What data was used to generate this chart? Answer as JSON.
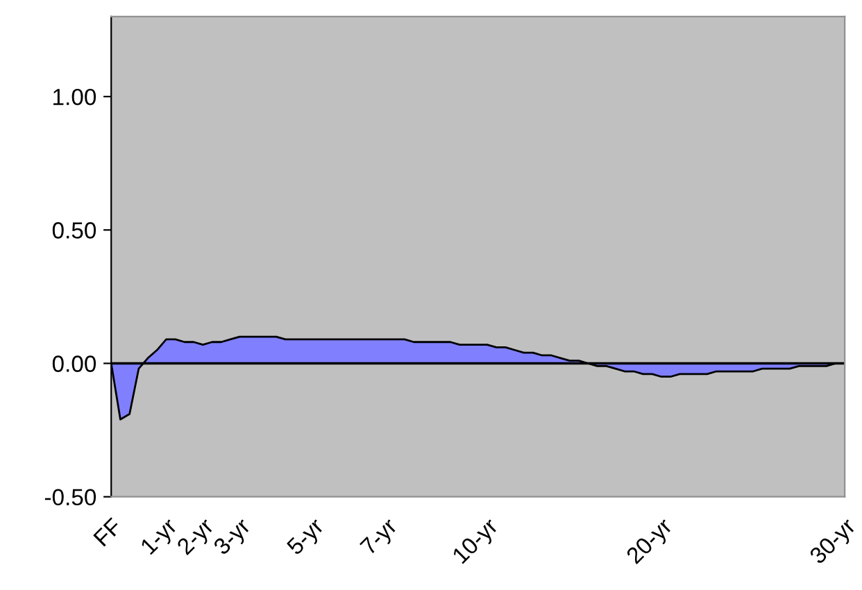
{
  "chart_data": {
    "type": "area",
    "categories": [
      "FF",
      null,
      null,
      null,
      null,
      null,
      "1-yr",
      null,
      null,
      null,
      "2-yr",
      null,
      null,
      null,
      "3-yr",
      null,
      null,
      null,
      null,
      null,
      null,
      null,
      "5-yr",
      null,
      null,
      null,
      null,
      null,
      null,
      null,
      "7-yr",
      null,
      null,
      null,
      null,
      null,
      null,
      null,
      null,
      null,
      null,
      "10-yr",
      null,
      null,
      null,
      null,
      null,
      null,
      null,
      null,
      null,
      null,
      null,
      null,
      null,
      null,
      null,
      null,
      null,
      null,
      "20-yr",
      null,
      null,
      null,
      null,
      null,
      null,
      null,
      null,
      null,
      null,
      null,
      null,
      null,
      null,
      null,
      null,
      null,
      null,
      null,
      "30-yr"
    ],
    "values": [
      0.0,
      -0.21,
      -0.19,
      -0.02,
      0.02,
      0.05,
      0.09,
      0.09,
      0.08,
      0.08,
      0.07,
      0.08,
      0.08,
      0.09,
      0.1,
      0.1,
      0.1,
      0.1,
      0.1,
      0.09,
      0.09,
      0.09,
      0.09,
      0.09,
      0.09,
      0.09,
      0.09,
      0.09,
      0.09,
      0.09,
      0.09,
      0.09,
      0.09,
      0.08,
      0.08,
      0.08,
      0.08,
      0.08,
      0.07,
      0.07,
      0.07,
      0.07,
      0.06,
      0.06,
      0.05,
      0.04,
      0.04,
      0.03,
      0.03,
      0.02,
      0.01,
      0.01,
      0.0,
      -0.01,
      -0.01,
      -0.02,
      -0.03,
      -0.03,
      -0.04,
      -0.04,
      -0.05,
      -0.05,
      -0.04,
      -0.04,
      -0.04,
      -0.04,
      -0.03,
      -0.03,
      -0.03,
      -0.03,
      -0.03,
      -0.02,
      -0.02,
      -0.02,
      -0.02,
      -0.01,
      -0.01,
      -0.01,
      -0.01,
      0.0,
      0.0
    ],
    "color": "#8080ff",
    "ylim": [
      -0.5,
      1.3
    ],
    "yticks": [
      {
        "value": -0.5,
        "label": "-0.50"
      },
      {
        "value": 0,
        "label": "0.00"
      },
      {
        "value": 0.5,
        "label": "0.50"
      },
      {
        "value": 1.0,
        "label": "1.00"
      }
    ],
    "ref_lines": [
      {
        "axis": "y",
        "value": 0,
        "color": "#000000"
      }
    ]
  }
}
